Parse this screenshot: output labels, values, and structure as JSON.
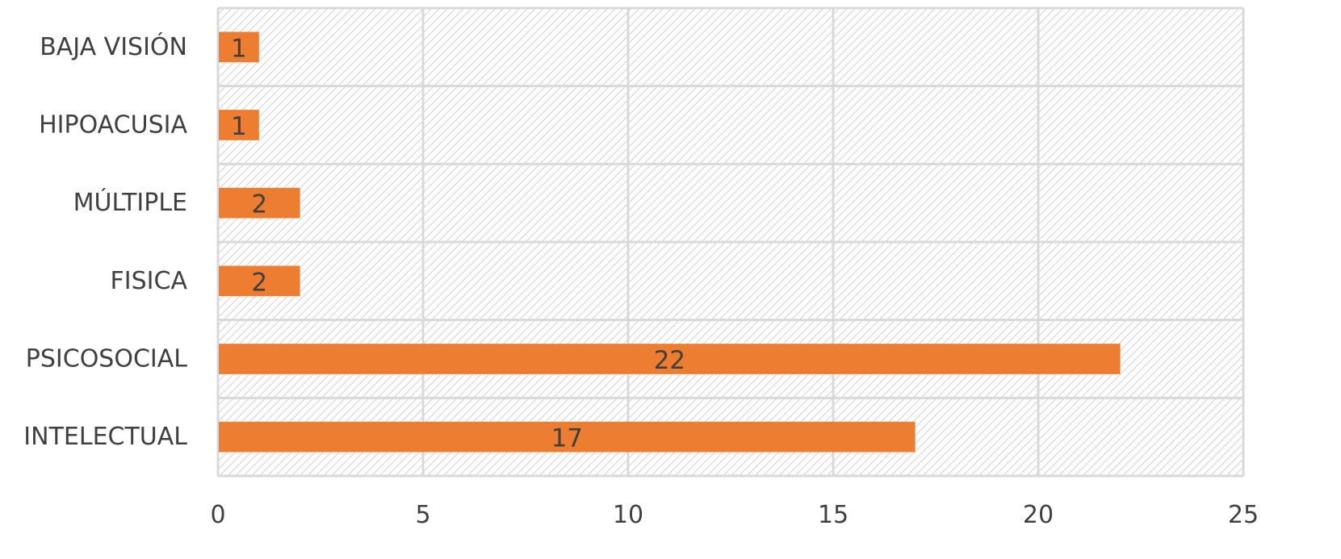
{
  "chart_data": {
    "type": "bar",
    "orientation": "horizontal",
    "categories": [
      "BAJA VISIÓN",
      "HIPOACUSIA",
      "MÚLTIPLE",
      "FISICA",
      "PSICOSOCIAL",
      "INTELECTUAL"
    ],
    "values": [
      1,
      1,
      2,
      2,
      22,
      17
    ],
    "data_labels": [
      "1",
      "1",
      "2",
      "2",
      "22",
      "17"
    ],
    "title": "",
    "xlabel": "",
    "ylabel": "",
    "xlim": [
      0,
      25
    ],
    "x_ticks": [
      0,
      5,
      10,
      15,
      20,
      25
    ],
    "x_tick_labels": [
      "0",
      "5",
      "10",
      "15",
      "20",
      "25"
    ],
    "grid": true,
    "legend": "none",
    "plot_background": "diagonal hatch",
    "colors": {
      "bar": "#ED7D31",
      "grid": "#D9D9D9",
      "hatch": "#BFBFBF",
      "text": "#404040"
    }
  }
}
